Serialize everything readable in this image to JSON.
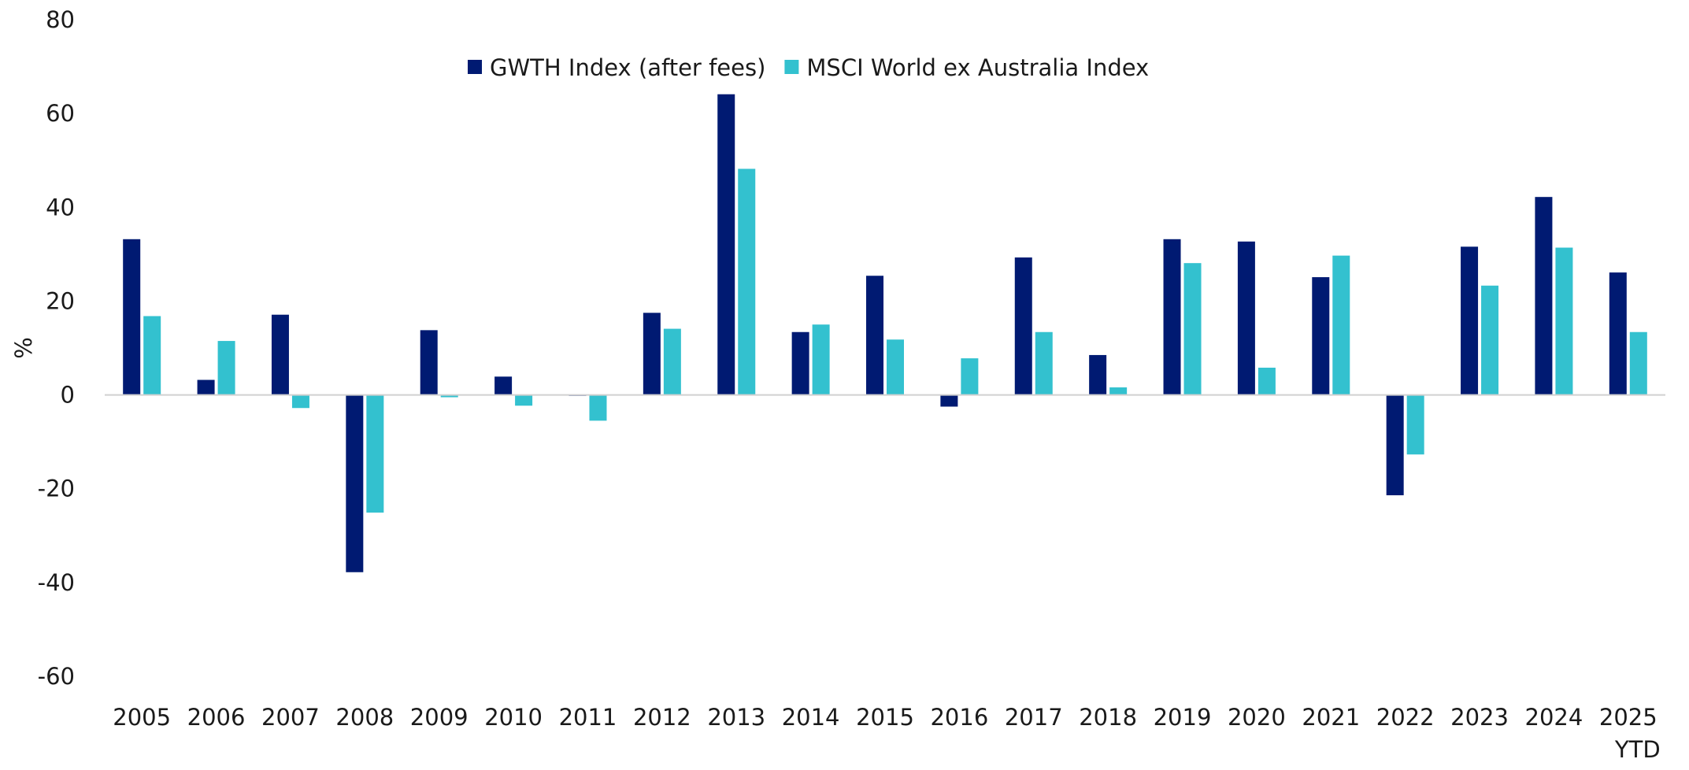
{
  "chart_data": {
    "type": "bar",
    "title": "",
    "xlabel": "",
    "ylabel": "%",
    "ylim": [
      -60,
      80
    ],
    "yticks": [
      -60,
      -40,
      -20,
      0,
      20,
      40,
      60,
      80
    ],
    "grid": false,
    "legend_placement": "top-center",
    "categories": [
      "2005",
      "2006",
      "2007",
      "2008",
      "2009",
      "2010",
      "2011",
      "2012",
      "2013",
      "2014",
      "2015",
      "2016",
      "2017",
      "2018",
      "2019",
      "2020",
      "2021",
      "2022",
      "2023",
      "2024",
      "2025\nYTD"
    ],
    "category_labels": [
      [
        "2005"
      ],
      [
        "2006"
      ],
      [
        "2007"
      ],
      [
        "2008"
      ],
      [
        "2009"
      ],
      [
        "2010"
      ],
      [
        "2011"
      ],
      [
        "2012"
      ],
      [
        "2013"
      ],
      [
        "2014"
      ],
      [
        "2015"
      ],
      [
        "2016"
      ],
      [
        "2017"
      ],
      [
        "2018"
      ],
      [
        "2019"
      ],
      [
        "2020"
      ],
      [
        "2021"
      ],
      [
        "2022"
      ],
      [
        "2023"
      ],
      [
        "2024"
      ],
      [
        "2025",
        "YTD"
      ]
    ],
    "series": [
      {
        "name": "GWTH Index (after fees)",
        "color": "#001A72",
        "values": [
          33.2,
          3.2,
          17.1,
          -37.8,
          13.8,
          3.9,
          -0.2,
          17.5,
          64.1,
          13.4,
          25.4,
          -2.5,
          29.3,
          8.5,
          33.2,
          32.7,
          25.1,
          -21.4,
          31.6,
          42.2,
          26.1
        ]
      },
      {
        "name": "MSCI World ex Australia Index",
        "color": "#33C1CF",
        "values": [
          16.8,
          11.5,
          -2.8,
          -25.1,
          -0.5,
          -2.3,
          -5.5,
          14.1,
          48.2,
          15.0,
          11.8,
          7.8,
          13.4,
          1.6,
          28.1,
          5.8,
          29.7,
          -12.7,
          23.3,
          31.4,
          13.4
        ]
      }
    ]
  }
}
